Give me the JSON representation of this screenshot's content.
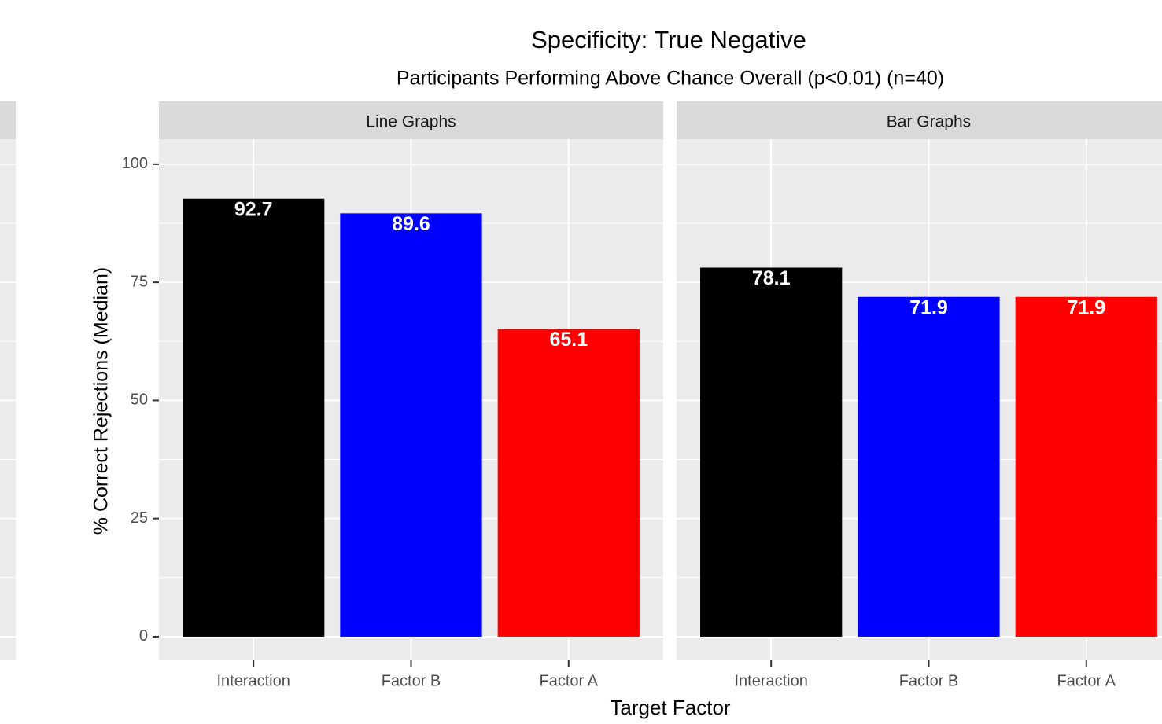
{
  "chart_data": {
    "type": "bar",
    "title": "Specificity: True Negative",
    "subtitle": "Participants Performing Above Chance Overall (p<0.01) (n=40)",
    "x_label": "Target Factor",
    "y_label": "% Correct Rejections (Median)",
    "ylim": [
      -5,
      105.3
    ],
    "yticks": [
      0,
      25,
      50,
      75,
      100
    ],
    "yminor": [
      12.5,
      37.5,
      62.5,
      87.5
    ],
    "grid": true,
    "facets": [
      {
        "name": "Line Graphs",
        "categories": [
          "Interaction",
          "Factor B",
          "Factor A"
        ],
        "values": [
          92.7,
          89.6,
          65.1
        ],
        "colors": [
          "#000000",
          "#0000ff",
          "#ff0000"
        ]
      },
      {
        "name": "Bar Graphs",
        "categories": [
          "Interaction",
          "Factor B",
          "Factor A"
        ],
        "values": [
          78.1,
          71.9,
          71.9
        ],
        "colors": [
          "#000000",
          "#0000ff",
          "#ff0000"
        ]
      }
    ]
  }
}
